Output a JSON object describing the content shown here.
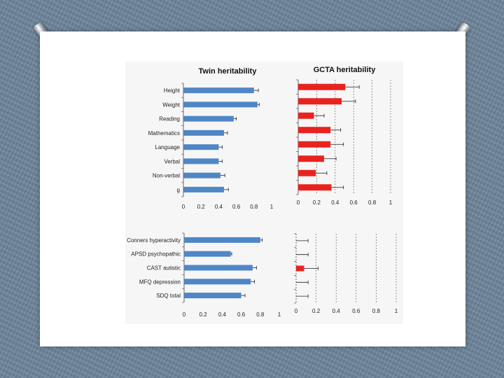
{
  "colors": {
    "twin_bar": "#4f86c6",
    "gcta_bar": "#e8231f",
    "background": "#6f869c"
  },
  "chart_data": [
    {
      "type": "bar",
      "orientation": "horizontal",
      "title": "Twin heritability",
      "categories": [
        "Height",
        "Weight",
        "Reading",
        "Mathematics",
        "Language",
        "Verbal",
        "Non-verbal",
        "g"
      ],
      "values": [
        0.8,
        0.84,
        0.57,
        0.46,
        0.4,
        0.4,
        0.42,
        0.46
      ],
      "error": [
        0.05,
        0.02,
        0.03,
        0.04,
        0.04,
        0.04,
        0.05,
        0.05
      ],
      "xlim": [
        0,
        1
      ],
      "xticks": [
        "0",
        "0.2",
        "0.4",
        "0.6",
        "0.8",
        "1"
      ],
      "grid": false
    },
    {
      "type": "bar",
      "orientation": "horizontal",
      "title": "GCTA heritability",
      "categories": [
        "Height",
        "Weight",
        "Reading",
        "Mathematics",
        "Language",
        "Verbal",
        "Non-verbal",
        "g"
      ],
      "values": [
        0.51,
        0.47,
        0.17,
        0.35,
        0.35,
        0.28,
        0.19,
        0.36
      ],
      "error": [
        0.15,
        0.15,
        0.11,
        0.11,
        0.14,
        0.13,
        0.12,
        0.13
      ],
      "xlim": [
        0,
        1
      ],
      "xticks": [
        "0",
        "0.2",
        "0.4",
        "0.6",
        "0.8",
        "1"
      ],
      "grid": true
    },
    {
      "type": "bar",
      "orientation": "horizontal",
      "categories": [
        "Conners hyperactivity",
        "APSD psychopathic",
        "CAST autistic",
        "MFQ depression",
        "SDQ total"
      ],
      "values": [
        0.8,
        0.49,
        0.72,
        0.7,
        0.6
      ],
      "error": [
        0.02,
        0.01,
        0.04,
        0.04,
        0.04
      ],
      "xlim": [
        0,
        1
      ],
      "xticks": [
        "0",
        "0.2",
        "0.4",
        "0.6",
        "0.8",
        "1"
      ],
      "grid": false
    },
    {
      "type": "bar",
      "orientation": "horizontal",
      "categories": [
        "Conners hyperactivity",
        "APSD psychopathic",
        "CAST autistic",
        "MFQ depression",
        "SDQ total"
      ],
      "values": [
        0,
        0,
        0.08,
        0,
        0
      ],
      "error": [
        0.12,
        0.12,
        0.14,
        0.12,
        0.12
      ],
      "xlim": [
        0,
        1
      ],
      "xticks": [
        "0",
        "0.2",
        "0.4",
        "0.6",
        "0.8",
        "1"
      ],
      "grid": true
    }
  ]
}
